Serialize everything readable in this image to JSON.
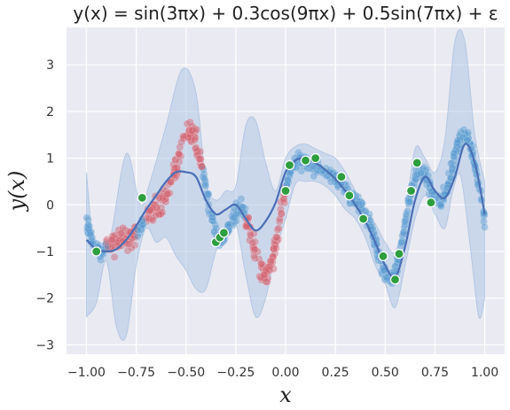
{
  "chart_data": {
    "type": "scatter",
    "title": "y(x) = sin(3πx) + 0.3cos(9πx) + 0.5sin(7πx) + ε",
    "xlabel": "x",
    "ylabel": "y(x)",
    "xlim": [
      -1.1,
      1.1
    ],
    "ylim": [
      -3.2,
      3.8
    ],
    "xticks": [
      -1.0,
      -0.75,
      -0.5,
      -0.25,
      0.0,
      0.25,
      0.5,
      0.75,
      1.0
    ],
    "xtick_labels": [
      "−1.00",
      "−0.75",
      "−0.50",
      "−0.25",
      "0.00",
      "0.25",
      "0.50",
      "0.75",
      "1.00"
    ],
    "yticks": [
      -3,
      -2,
      -1,
      0,
      1,
      2,
      3
    ],
    "ytick_labels": [
      "−3",
      "−2",
      "−1",
      "0",
      "1",
      "2",
      "3"
    ],
    "grid": true,
    "background": "#eaeaf2",
    "colors": {
      "blue_points": "#5b9bd0",
      "red_points": "#d2616e",
      "green_points": "#2e9e3e",
      "mean_line": "#4a6fb5",
      "band": "#a9c4e4"
    },
    "red_intervals": [
      [
        -0.9,
        -0.75
      ],
      [
        -0.7,
        -0.42
      ],
      [
        -0.2,
        0.0
      ]
    ],
    "mean_curve": {
      "x": [
        -1.0,
        -0.95,
        -0.9,
        -0.85,
        -0.8,
        -0.75,
        -0.7,
        -0.65,
        -0.6,
        -0.55,
        -0.5,
        -0.45,
        -0.4,
        -0.35,
        -0.3,
        -0.25,
        -0.2,
        -0.15,
        -0.1,
        -0.05,
        0.0,
        0.05,
        0.1,
        0.15,
        0.2,
        0.25,
        0.3,
        0.35,
        0.4,
        0.45,
        0.5,
        0.55,
        0.6,
        0.65,
        0.7,
        0.75,
        0.8,
        0.85,
        0.9,
        0.95,
        1.0
      ],
      "y": [
        -0.75,
        -0.95,
        -1.0,
        -0.95,
        -0.75,
        -0.45,
        -0.1,
        0.2,
        0.5,
        0.7,
        0.7,
        0.6,
        0.1,
        -0.2,
        -0.1,
        0.0,
        -0.3,
        -0.55,
        -0.35,
        0.05,
        0.7,
        0.95,
        1.0,
        0.9,
        0.75,
        0.55,
        0.3,
        0.0,
        -0.35,
        -0.8,
        -1.3,
        -1.55,
        -0.9,
        0.1,
        0.6,
        0.3,
        0.15,
        0.6,
        1.3,
        0.9,
        -0.2
      ]
    },
    "band_upper": {
      "x": [
        -1.0,
        -0.97,
        -0.93,
        -0.88,
        -0.8,
        -0.73,
        -0.68,
        -0.6,
        -0.52,
        -0.45,
        -0.4,
        -0.35,
        -0.3,
        -0.25,
        -0.2,
        -0.15,
        -0.1,
        -0.05,
        0.0,
        0.05,
        0.1,
        0.15,
        0.2,
        0.25,
        0.3,
        0.35,
        0.4,
        0.45,
        0.5,
        0.55,
        0.6,
        0.65,
        0.7,
        0.75,
        0.8,
        0.85,
        0.9,
        0.95,
        1.0
      ],
      "y": [
        0.7,
        -0.6,
        -0.8,
        -0.7,
        1.1,
        0.0,
        0.5,
        1.7,
        2.9,
        2.4,
        0.5,
        0.1,
        0.3,
        0.4,
        1.7,
        1.8,
        0.9,
        0.3,
        1.0,
        1.25,
        1.3,
        1.2,
        1.1,
        1.0,
        0.7,
        0.3,
        -0.1,
        -0.4,
        -0.8,
        -1.0,
        -0.2,
        1.2,
        1.0,
        0.7,
        1.4,
        3.5,
        3.5,
        1.5,
        0.5
      ]
    },
    "band_lower": {
      "x": [
        1.0,
        0.97,
        0.93,
        0.88,
        0.84,
        0.8,
        0.75,
        0.7,
        0.65,
        0.6,
        0.55,
        0.5,
        0.45,
        0.4,
        0.35,
        0.3,
        0.25,
        0.2,
        0.15,
        0.1,
        0.05,
        0.0,
        -0.05,
        -0.1,
        -0.15,
        -0.2,
        -0.25,
        -0.3,
        -0.35,
        -0.4,
        -0.45,
        -0.5,
        -0.55,
        -0.6,
        -0.65,
        -0.7,
        -0.75,
        -0.8,
        -0.85,
        -0.9,
        -0.95,
        -1.0
      ],
      "y": [
        -2.0,
        -2.4,
        -1.0,
        0.6,
        0.3,
        -0.5,
        -0.2,
        0.2,
        -0.3,
        -1.3,
        -2.2,
        -1.7,
        -1.3,
        -0.7,
        -0.3,
        -0.1,
        0.2,
        0.4,
        0.5,
        0.5,
        0.45,
        -0.3,
        -1.0,
        -2.0,
        -2.4,
        -1.5,
        -0.4,
        -0.6,
        -1.0,
        -1.8,
        -1.8,
        -1.4,
        -1.1,
        -0.7,
        -0.8,
        -0.5,
        -1.3,
        -2.8,
        -2.6,
        -1.2,
        -2.1,
        -2.4
      ]
    },
    "green_points": {
      "x": [
        -0.95,
        -0.72,
        -0.35,
        -0.33,
        -0.31,
        0.0,
        0.02,
        0.1,
        0.15,
        0.28,
        0.32,
        0.39,
        0.49,
        0.55,
        0.57,
        0.63,
        0.66,
        0.73
      ],
      "y": [
        -1.0,
        0.15,
        -0.8,
        -0.7,
        -0.6,
        0.3,
        0.85,
        0.95,
        1.0,
        0.6,
        0.2,
        -0.3,
        -1.1,
        -1.6,
        -1.05,
        0.3,
        0.9,
        0.05
      ]
    }
  }
}
